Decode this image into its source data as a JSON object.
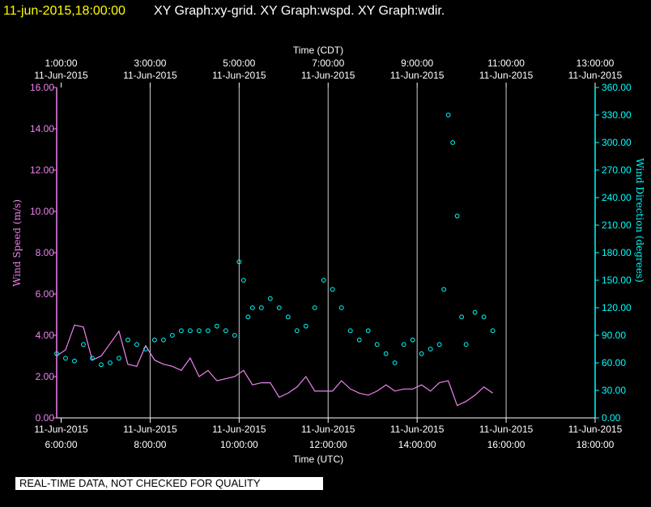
{
  "header": {
    "date_label": "11-jun-2015,18:00:00",
    "graph_titles": "XY Graph:xy-grid.  XY Graph:wspd.  XY Graph:wdir."
  },
  "footer": {
    "disclaimer": "REAL-TIME DATA, NOT CHECKED FOR QUALITY"
  },
  "chart_data": {
    "type": "scatter",
    "top_axis_label": "Time (CDT)",
    "bottom_axis_label": "Time (UTC)",
    "left_axis_label": "Wind Speed (m/s)",
    "right_axis_label": "Wind Direction (degrees)",
    "x_range_utc_hours": [
      5.9,
      18.0
    ],
    "x_ticks": [
      {
        "utc_hour": 6,
        "top_time": "1:00:00",
        "top_date": "11-Jun-2015",
        "bottom_date": "11-Jun-2015",
        "bottom_time": "6:00:00"
      },
      {
        "utc_hour": 8,
        "top_time": "3:00:00",
        "top_date": "11-Jun-2015",
        "bottom_date": "11-Jun-2015",
        "bottom_time": "8:00:00"
      },
      {
        "utc_hour": 10,
        "top_time": "5:00:00",
        "top_date": "11-Jun-2015",
        "bottom_date": "11-Jun-2015",
        "bottom_time": "10:00:00"
      },
      {
        "utc_hour": 12,
        "top_time": "7:00:00",
        "top_date": "11-Jun-2015",
        "bottom_date": "11-Jun-2015",
        "bottom_time": "12:00:00"
      },
      {
        "utc_hour": 14,
        "top_time": "9:00:00",
        "top_date": "11-Jun-2015",
        "bottom_date": "11-Jun-2015",
        "bottom_time": "14:00:00"
      },
      {
        "utc_hour": 16,
        "top_time": "11:00:00",
        "top_date": "11-Jun-2015",
        "bottom_date": "11-Jun-2015",
        "bottom_time": "16:00:00"
      },
      {
        "utc_hour": 18,
        "top_time": "13:00:00",
        "top_date": "11-Jun-2015",
        "bottom_date": "11-Jun-2015",
        "bottom_time": "18:00:00"
      }
    ],
    "left_axis": {
      "min": 0,
      "max": 16,
      "step": 2,
      "decimals": 2
    },
    "right_axis": {
      "min": 0,
      "max": 360,
      "step": 30,
      "decimals": 2
    },
    "grid": {
      "vertical": true,
      "horizontal": false
    },
    "series": [
      {
        "name": "wspd",
        "color": "#ee82ee",
        "style": "line",
        "axis": "left",
        "x": [
          5.9,
          6.1,
          6.3,
          6.5,
          6.7,
          6.9,
          7.1,
          7.3,
          7.5,
          7.7,
          7.9,
          8.1,
          8.3,
          8.5,
          8.7,
          8.9,
          9.1,
          9.3,
          9.5,
          9.7,
          9.9,
          10.1,
          10.3,
          10.5,
          10.7,
          10.9,
          11.1,
          11.3,
          11.5,
          11.7,
          11.9,
          12.1,
          12.3,
          12.5,
          12.7,
          12.9,
          13.1,
          13.3,
          13.5,
          13.7,
          13.9,
          14.1,
          14.3,
          14.5,
          14.7,
          14.9,
          15.1,
          15.3,
          15.5,
          15.7
        ],
        "y": [
          3.0,
          3.3,
          4.5,
          4.4,
          2.8,
          3.0,
          3.6,
          4.2,
          2.6,
          2.5,
          3.5,
          2.8,
          2.6,
          2.5,
          2.3,
          2.9,
          2.0,
          2.3,
          1.8,
          1.9,
          2.0,
          2.3,
          1.6,
          1.7,
          1.7,
          1.0,
          1.2,
          1.5,
          2.0,
          1.3,
          1.3,
          1.3,
          1.8,
          1.4,
          1.2,
          1.1,
          1.3,
          1.6,
          1.3,
          1.4,
          1.4,
          1.6,
          1.3,
          1.7,
          1.8,
          0.6,
          0.8,
          1.1,
          1.5,
          1.2
        ]
      },
      {
        "name": "wdir",
        "color": "#00ffff",
        "style": "circles",
        "axis": "right",
        "x": [
          5.9,
          6.1,
          6.3,
          6.5,
          6.7,
          6.9,
          7.1,
          7.3,
          7.5,
          7.7,
          7.9,
          8.1,
          8.3,
          8.5,
          8.7,
          8.9,
          9.1,
          9.3,
          9.5,
          9.7,
          9.9,
          10.0,
          10.1,
          10.2,
          10.3,
          10.5,
          10.7,
          10.9,
          11.1,
          11.3,
          11.5,
          11.7,
          11.9,
          12.1,
          12.3,
          12.5,
          12.7,
          12.9,
          13.1,
          13.3,
          13.5,
          13.7,
          13.9,
          14.1,
          14.3,
          14.5,
          14.6,
          14.7,
          14.8,
          14.9,
          15.0,
          15.1,
          15.3,
          15.5,
          15.7
        ],
        "y": [
          70,
          65,
          62,
          80,
          65,
          58,
          60,
          65,
          85,
          80,
          75,
          85,
          85,
          90,
          95,
          95,
          95,
          95,
          100,
          95,
          90,
          170,
          150,
          110,
          120,
          120,
          130,
          120,
          110,
          95,
          100,
          120,
          150,
          140,
          120,
          95,
          85,
          95,
          80,
          70,
          60,
          80,
          85,
          70,
          75,
          80,
          140,
          330,
          300,
          220,
          110,
          80,
          115,
          110,
          95
        ]
      }
    ]
  }
}
